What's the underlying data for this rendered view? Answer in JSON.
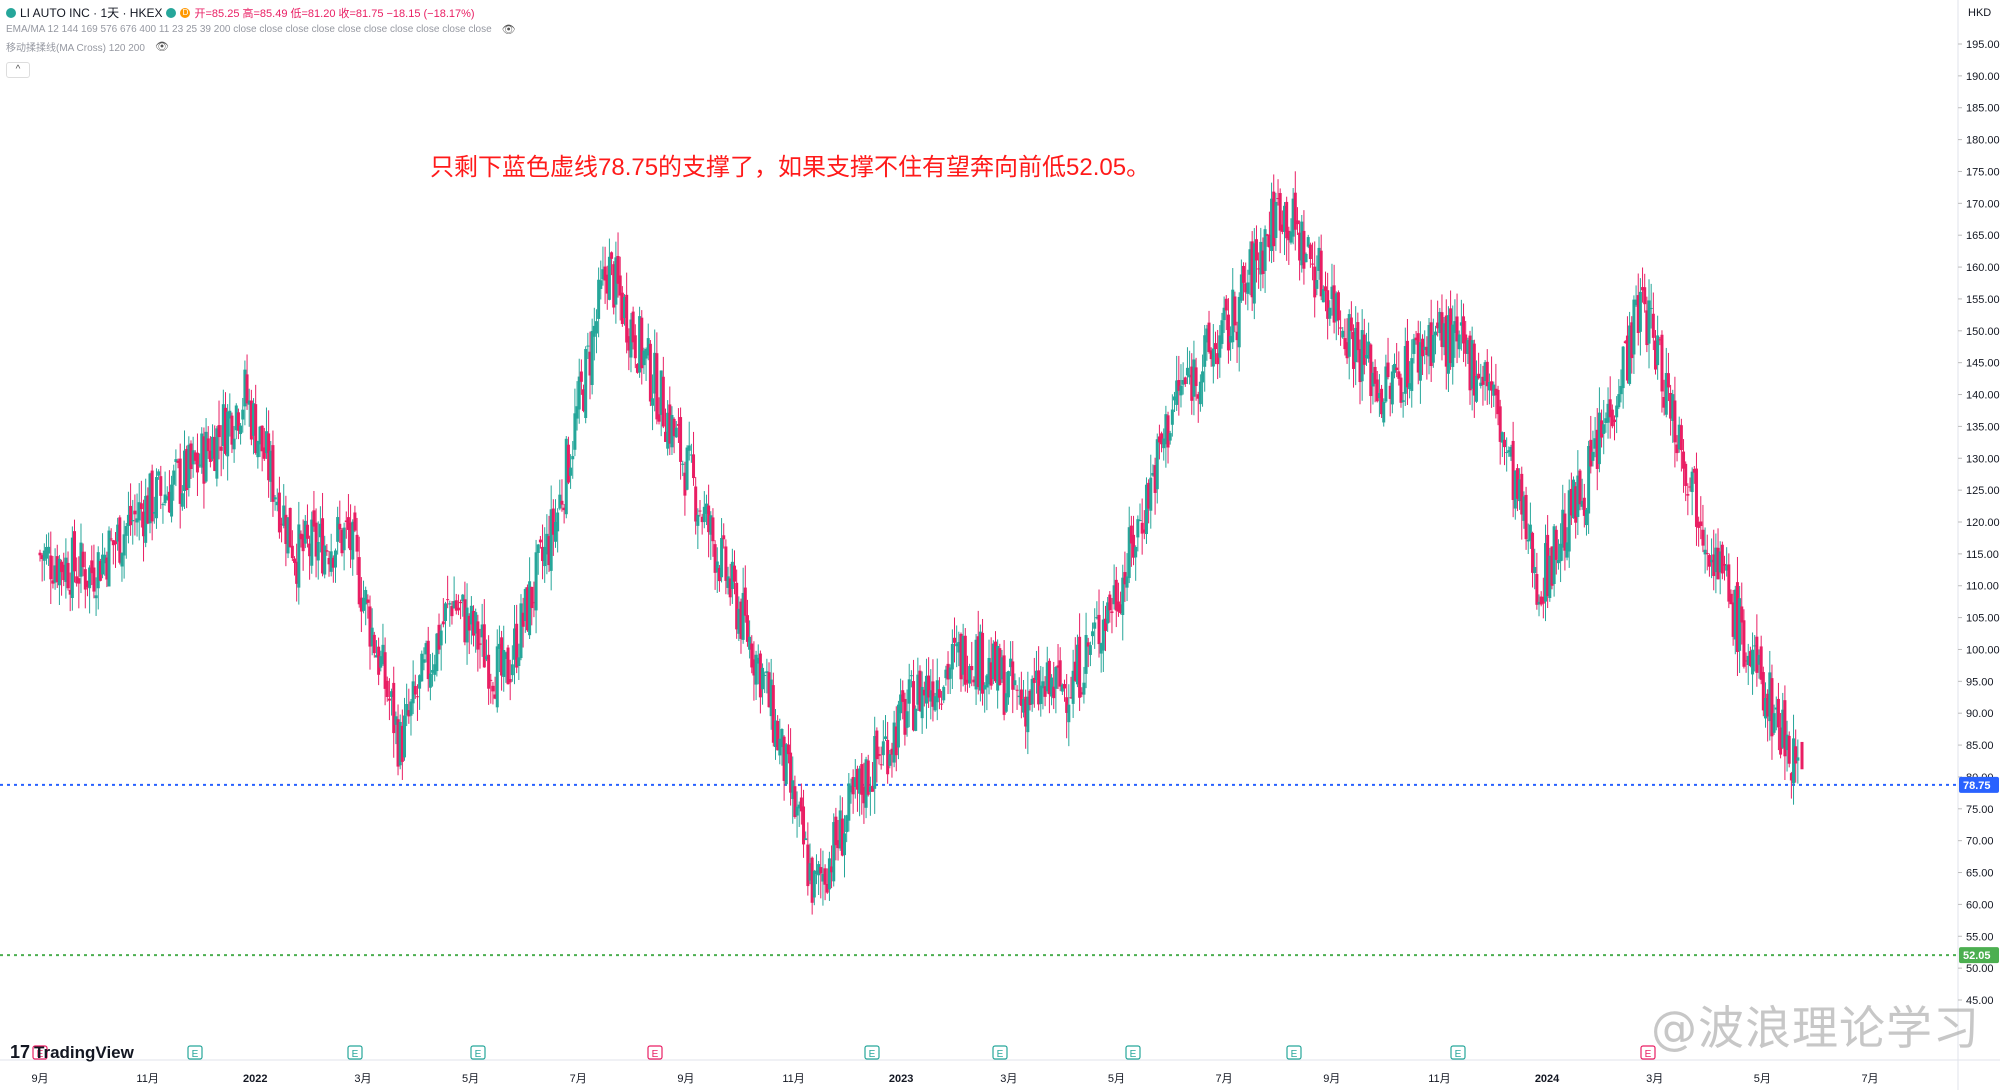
{
  "header": {
    "symbol": "LI AUTO INC · 1天 · HKEX",
    "ohlc": "开=85.25 高=85.49 低=81.20 收=81.75 −18.15 (−18.17%)",
    "indicator_1": "EMA/MA 12 144 169 576 676 400 11 23 25 39 200 close close close close close close close close close close",
    "indicator_2": "移动揉揉线(MA Cross) 120 200",
    "collapse_symbol": "^"
  },
  "annotation": "只剩下蓝色虚线78.75的支撑了，如果支撑不住有望奔向前低52.05。",
  "price_axis": {
    "currency": "HKD",
    "ticks": [
      "195.00",
      "190.00",
      "185.00",
      "180.00",
      "175.00",
      "170.00",
      "165.00",
      "160.00",
      "155.00",
      "150.00",
      "145.00",
      "140.00",
      "135.00",
      "130.00",
      "125.00",
      "120.00",
      "115.00",
      "110.00",
      "105.00",
      "100.00",
      "95.00",
      "90.00",
      "85.00",
      "80.00",
      "75.00",
      "70.00",
      "65.00",
      "60.00",
      "55.00",
      "50.00",
      "45.00"
    ],
    "tick_values": [
      195,
      190,
      185,
      180,
      175,
      170,
      165,
      160,
      155,
      150,
      145,
      140,
      135,
      130,
      125,
      120,
      115,
      110,
      105,
      100,
      95,
      90,
      85,
      80,
      75,
      70,
      65,
      60,
      55,
      50,
      45
    ]
  },
  "time_axis": {
    "labels": [
      "9月",
      "11月",
      "2022",
      "3月",
      "5月",
      "7月",
      "9月",
      "11月",
      "2023",
      "3月",
      "5月",
      "7月",
      "9月",
      "11月",
      "2024",
      "3月",
      "5月",
      "7月"
    ],
    "earnings_markers": [
      "E",
      "E",
      "E",
      "E",
      "E",
      "E",
      "E",
      "E",
      "E",
      "E",
      "E"
    ]
  },
  "levels": [
    {
      "price": 78.75,
      "label": "78.75",
      "color": "#2962ff"
    },
    {
      "price": 52.05,
      "label": "52.05",
      "color": "#4caf50"
    }
  ],
  "colors": {
    "up": "#26a69a",
    "down": "#e91e63",
    "annotation": "#ff1a1a"
  },
  "brand": "TradingView",
  "watermark": "@波浪理论学习",
  "chart_data": {
    "type": "candlestick",
    "series": [
      {
        "name": "LI AUTO INC",
        "points": [
          {
            "x": "2021-08",
            "y": 115
          },
          {
            "x": "2021-09",
            "y": 112
          },
          {
            "x": "2021-10",
            "y": 122
          },
          {
            "x": "2021-11",
            "y": 128
          },
          {
            "x": "2021-12",
            "y": 140
          },
          {
            "x": "2022-01",
            "y": 115
          },
          {
            "x": "2022-02",
            "y": 118
          },
          {
            "x": "2022-03",
            "y": 85
          },
          {
            "x": "2022-04",
            "y": 108
          },
          {
            "x": "2022-05",
            "y": 95
          },
          {
            "x": "2022-06",
            "y": 120
          },
          {
            "x": "2022-07",
            "y": 160
          },
          {
            "x": "2022-08",
            "y": 140
          },
          {
            "x": "2022-09",
            "y": 118
          },
          {
            "x": "2022-10",
            "y": 96
          },
          {
            "x": "2022-11",
            "y": 62
          },
          {
            "x": "2022-12",
            "y": 80
          },
          {
            "x": "2023-01",
            "y": 93
          },
          {
            "x": "2023-02",
            "y": 100
          },
          {
            "x": "2023-03",
            "y": 92
          },
          {
            "x": "2023-04",
            "y": 95
          },
          {
            "x": "2023-05",
            "y": 112
          },
          {
            "x": "2023-06",
            "y": 140
          },
          {
            "x": "2023-07",
            "y": 150
          },
          {
            "x": "2023-08",
            "y": 170
          },
          {
            "x": "2023-09",
            "y": 155
          },
          {
            "x": "2023-10",
            "y": 140
          },
          {
            "x": "2023-11",
            "y": 150
          },
          {
            "x": "2023-12",
            "y": 143
          },
          {
            "x": "2024-01",
            "y": 110
          },
          {
            "x": "2024-02",
            "y": 128
          },
          {
            "x": "2024-03",
            "y": 155
          },
          {
            "x": "2024-04",
            "y": 125
          },
          {
            "x": "2024-05",
            "y": 100
          },
          {
            "x": "2024-06",
            "y": 82
          }
        ]
      }
    ],
    "ylim": [
      45,
      195
    ],
    "xlabel": "",
    "ylabel": ""
  }
}
